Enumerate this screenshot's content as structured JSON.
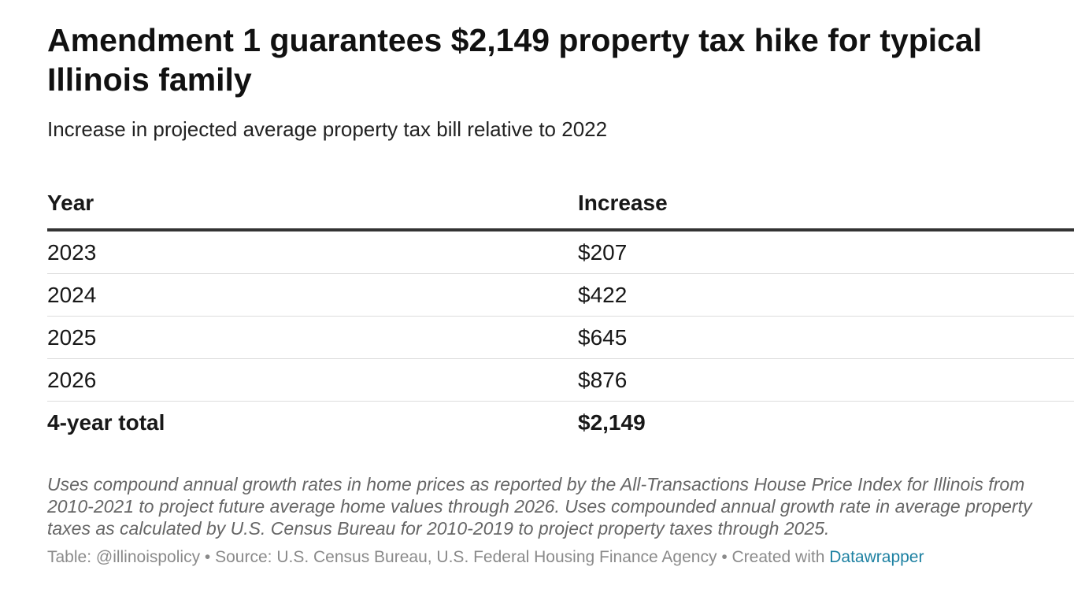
{
  "chart_data": {
    "type": "table",
    "title": "Amendment 1 guarantees $2,149 property tax hike for typical Illinois family",
    "subtitle": "Increase in projected average property tax bill relative to 2022",
    "columns": [
      "Year",
      "Increase"
    ],
    "rows": [
      {
        "year": "2023",
        "increase": "$207"
      },
      {
        "year": "2024",
        "increase": "$422"
      },
      {
        "year": "2025",
        "increase": "$645"
      },
      {
        "year": "2026",
        "increase": "$876"
      }
    ],
    "total": {
      "label": "4-year total",
      "value": "$2,149"
    },
    "notes": "Uses compound annual growth rates in home prices as reported by the All-Transactions House Price Index for Illinois from 2010-2021 to project future average home values through 2026. Uses compounded annual growth rate in average property taxes as calculated by U.S. Census Bureau for 2010-2019 to project property taxes through 2025.",
    "footer": {
      "table_credit": "Table: @illinoispolicy",
      "source": "Source: U.S. Census Bureau, U.S. Federal Housing Finance Agency",
      "created_with": "Created with",
      "tool": "Datawrapper",
      "separator": "•"
    }
  },
  "colors": {
    "text": "#181818",
    "notes": "#666666",
    "footer": "#8a8a8a",
    "link": "#1d81a2",
    "header_rule": "#333333",
    "row_rule": "#dddddd"
  }
}
